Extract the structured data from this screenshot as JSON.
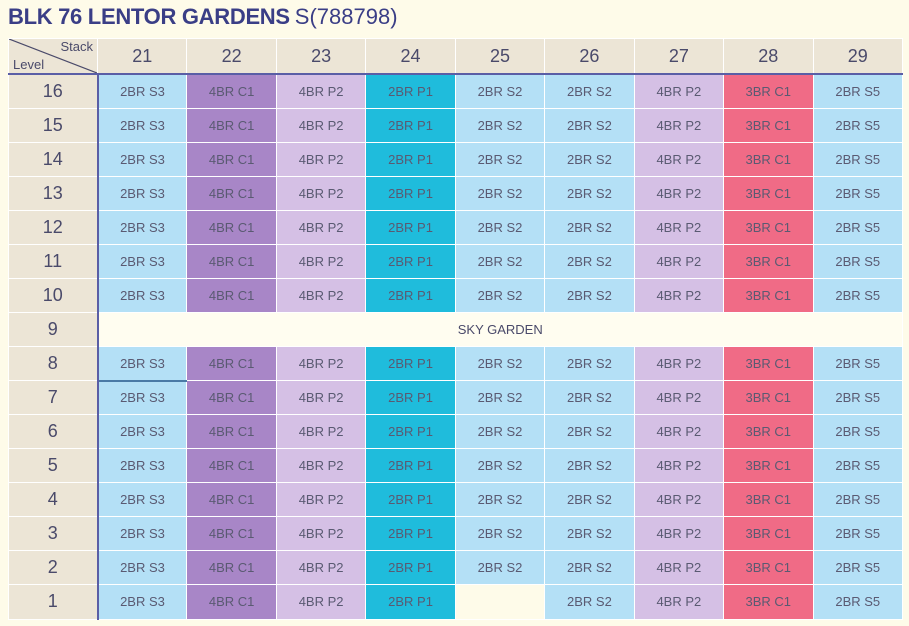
{
  "header": {
    "block_name": "BLK 76 LENTOR GARDENS",
    "postal_code": "S(788798)"
  },
  "grid": {
    "corner": {
      "stack_label": "Stack",
      "level_label": "Level"
    },
    "stacks": [
      "21",
      "22",
      "23",
      "24",
      "25",
      "26",
      "27",
      "28",
      "29"
    ],
    "unit_types": [
      "2BR S3",
      "4BR C1",
      "4BR P2",
      "2BR P1",
      "2BR S2",
      "2BR S2",
      "4BR P2",
      "3BR C1",
      "2BR S5"
    ],
    "type_colors": [
      "#b4e0f6",
      "#a886c7",
      "#d5c0e5",
      "#1fbcdc",
      "#b4e0f6",
      "#b4e0f6",
      "#d5c0e5",
      "#f06b86",
      "#b4e0f6"
    ],
    "levels": [
      "16",
      "15",
      "14",
      "13",
      "12",
      "11",
      "10",
      "9",
      "8",
      "7",
      "6",
      "5",
      "4",
      "3",
      "2",
      "1"
    ],
    "sky_garden_level": "9",
    "sky_garden_label": "SKY GARDEN",
    "empty_cells": [
      {
        "level": "1",
        "stack": "25"
      }
    ]
  }
}
